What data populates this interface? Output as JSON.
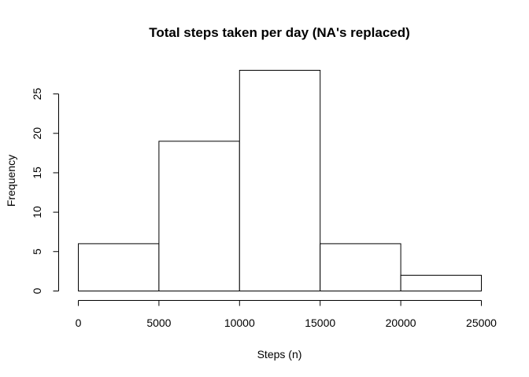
{
  "chart_data": {
    "type": "bar",
    "title": "Total steps taken per day (NA's replaced)",
    "xlabel": "Steps (n)",
    "ylabel": "Frequency",
    "bins": [
      {
        "from": 0,
        "to": 5000,
        "count": 6
      },
      {
        "from": 5000,
        "to": 10000,
        "count": 19
      },
      {
        "from": 10000,
        "to": 15000,
        "count": 28
      },
      {
        "from": 15000,
        "to": 20000,
        "count": 6
      },
      {
        "from": 20000,
        "to": 25000,
        "count": 2
      }
    ],
    "x_ticks": [
      0,
      5000,
      10000,
      15000,
      20000,
      25000
    ],
    "y_ticks": [
      0,
      5,
      10,
      15,
      20,
      25
    ],
    "xlim": [
      0,
      25000
    ],
    "ylim": [
      0,
      28
    ],
    "grid": false,
    "legend": "none",
    "bar_fill": "#ffffff",
    "bar_stroke": "#000000"
  }
}
